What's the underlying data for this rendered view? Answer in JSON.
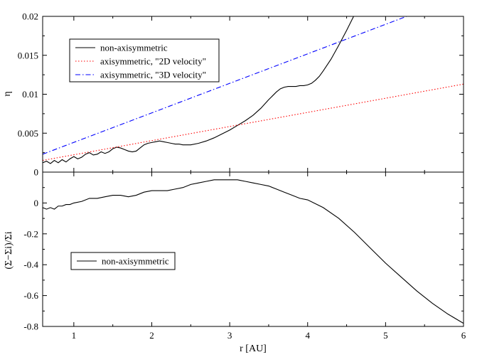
{
  "chart_data": [
    {
      "type": "line",
      "panel": "top",
      "ylabel": "η",
      "xlim": [
        0.6,
        6
      ],
      "ylim": [
        0,
        0.02
      ],
      "yticks": [
        "0",
        "0.005",
        "0.01",
        "0.015",
        "0.02"
      ],
      "ytick_values": [
        0,
        0.005,
        0.01,
        0.015,
        0.02
      ],
      "grid": false,
      "legend_placement": "upper-left",
      "series": [
        {
          "name": "non-axisymmetric",
          "color": "#000000",
          "style": "solid",
          "x": [
            0.6,
            0.65,
            0.7,
            0.75,
            0.8,
            0.85,
            0.9,
            0.95,
            1.0,
            1.05,
            1.1,
            1.15,
            1.2,
            1.25,
            1.3,
            1.35,
            1.4,
            1.45,
            1.5,
            1.55,
            1.6,
            1.65,
            1.7,
            1.75,
            1.8,
            1.85,
            1.9,
            1.95,
            2.0,
            2.05,
            2.1,
            2.15,
            2.2,
            2.25,
            2.3,
            2.35,
            2.4,
            2.45,
            2.5,
            2.6,
            2.7,
            2.8,
            2.9,
            3.0,
            3.1,
            3.2,
            3.3,
            3.4,
            3.5,
            3.55,
            3.6,
            3.65,
            3.7,
            3.75,
            3.8,
            3.85,
            3.9,
            3.95,
            4.0,
            4.05,
            4.1,
            4.15,
            4.2,
            4.3,
            4.4,
            4.5,
            4.6,
            4.65
          ],
          "y": [
            0.0012,
            0.0014,
            0.0011,
            0.0015,
            0.0012,
            0.0016,
            0.0013,
            0.0017,
            0.002,
            0.0017,
            0.0019,
            0.0023,
            0.0025,
            0.0022,
            0.0023,
            0.0026,
            0.0024,
            0.0026,
            0.003,
            0.0032,
            0.0031,
            0.0029,
            0.0027,
            0.0026,
            0.0027,
            0.0031,
            0.0035,
            0.0037,
            0.0038,
            0.0039,
            0.004,
            0.0039,
            0.0038,
            0.0037,
            0.0036,
            0.0036,
            0.0035,
            0.0035,
            0.0035,
            0.0037,
            0.004,
            0.0044,
            0.0049,
            0.0054,
            0.006,
            0.0066,
            0.0073,
            0.0082,
            0.0093,
            0.0098,
            0.0103,
            0.0107,
            0.0109,
            0.011,
            0.011,
            0.011,
            0.0111,
            0.0111,
            0.0112,
            0.0114,
            0.0118,
            0.0123,
            0.013,
            0.0145,
            0.0163,
            0.0182,
            0.0202,
            0.0212
          ]
        },
        {
          "name": "axisymmetric, \"2D velocity\"",
          "color": "#ff0000",
          "style": "dotted",
          "x": [
            0.6,
            6
          ],
          "y": [
            0.0015,
            0.0113
          ]
        },
        {
          "name": "axisymmetric, \"3D velocity\"",
          "color": "#0000ff",
          "style": "dashdot",
          "x": [
            0.6,
            5.27
          ],
          "y": [
            0.0023,
            0.02
          ]
        }
      ]
    },
    {
      "type": "line",
      "panel": "bottom",
      "xlabel": "r [AU]",
      "ylabel": "(Σ−Σi)/Σi",
      "xlim": [
        0.6,
        6
      ],
      "ylim": [
        -0.8,
        0.2
      ],
      "xticks": [
        "1",
        "2",
        "3",
        "4",
        "5",
        "6"
      ],
      "xtick_values": [
        1,
        2,
        3,
        4,
        5,
        6
      ],
      "yticks": [
        "-0.8",
        "-0.6",
        "-0.4",
        "-0.2",
        "0",
        "0.2"
      ],
      "ytick_values": [
        -0.8,
        -0.6,
        -0.4,
        -0.2,
        0,
        0.2
      ],
      "grid": false,
      "legend_placement": "lower-left",
      "series": [
        {
          "name": "non-axisymmetric",
          "color": "#000000",
          "style": "solid",
          "x": [
            0.6,
            0.65,
            0.7,
            0.75,
            0.8,
            0.85,
            0.9,
            0.95,
            1.0,
            1.1,
            1.2,
            1.3,
            1.4,
            1.5,
            1.6,
            1.7,
            1.8,
            1.9,
            2.0,
            2.1,
            2.2,
            2.3,
            2.4,
            2.5,
            2.6,
            2.7,
            2.8,
            2.9,
            3.0,
            3.1,
            3.2,
            3.3,
            3.4,
            3.5,
            3.6,
            3.7,
            3.8,
            3.9,
            4.0,
            4.2,
            4.4,
            4.6,
            4.8,
            5.0,
            5.2,
            5.4,
            5.6,
            5.8,
            6.0
          ],
          "y": [
            -0.03,
            -0.04,
            -0.03,
            -0.04,
            -0.02,
            -0.02,
            -0.01,
            -0.01,
            0.0,
            0.01,
            0.03,
            0.03,
            0.04,
            0.05,
            0.05,
            0.04,
            0.05,
            0.07,
            0.08,
            0.08,
            0.08,
            0.09,
            0.1,
            0.12,
            0.13,
            0.14,
            0.15,
            0.15,
            0.15,
            0.15,
            0.14,
            0.13,
            0.12,
            0.11,
            0.09,
            0.07,
            0.05,
            0.03,
            0.02,
            -0.03,
            -0.1,
            -0.19,
            -0.29,
            -0.39,
            -0.48,
            -0.57,
            -0.65,
            -0.72,
            -0.78
          ]
        }
      ]
    }
  ]
}
